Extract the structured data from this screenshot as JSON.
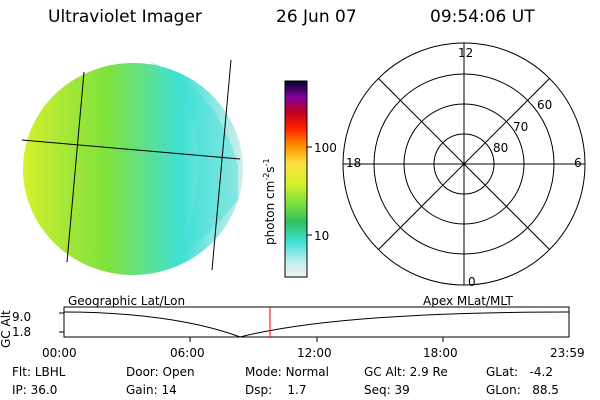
{
  "header": {
    "instrument": "Ultraviolet Imager",
    "date": "26 Jun 07",
    "time": "09:54:06 UT"
  },
  "colors": {
    "image_green": "#7fe23b",
    "image_yellow": "#d8f02a",
    "image_cyan": "#3fe0d6",
    "image_pale": "#bfeeee",
    "overlay": "#000000",
    "time_marker": "#ff0000"
  },
  "colorbar": {
    "label_main": "photon cm",
    "label_sup1": "-2",
    "label_mid": "s",
    "label_sup2": "-1",
    "ticks": [
      "100",
      "10"
    ]
  },
  "polar_plot": {
    "mlt_labels": {
      "top": "12",
      "bottom": "0",
      "left": "18",
      "right": "6"
    },
    "lat_labels": [
      "60",
      "70",
      "80"
    ]
  },
  "timeline": {
    "left_label": "Geographic Lat/Lon",
    "right_label": "Apex MLat/MLT",
    "axis_title": "GC Alt",
    "y_max": "9.0",
    "y_min": "1.8",
    "time_ticks": [
      "00:00",
      "06:00",
      "12:00",
      "18:00",
      "23:59"
    ],
    "marker_time": "09:54:06"
  },
  "status": {
    "row1": {
      "flt_label": "Flt:",
      "flt_value": "LBHL",
      "door_label": "Door:",
      "door_value": "Open",
      "mode_label": "Mode:",
      "mode_value": "Normal",
      "gcalt_label": "GC Alt:",
      "gcalt_value": "2.9 Re",
      "glat_label": "GLat:",
      "glat_value": "-4.2"
    },
    "row2": {
      "ip_label": "IP:",
      "ip_value": "36.0",
      "gain_label": "Gain:",
      "gain_value": "14",
      "dsp_label": "Dsp:",
      "dsp_value": "1.7",
      "seq_label": "Seq:",
      "seq_value": "39",
      "glon_label": "GLon:",
      "glon_value": "88.5"
    }
  }
}
